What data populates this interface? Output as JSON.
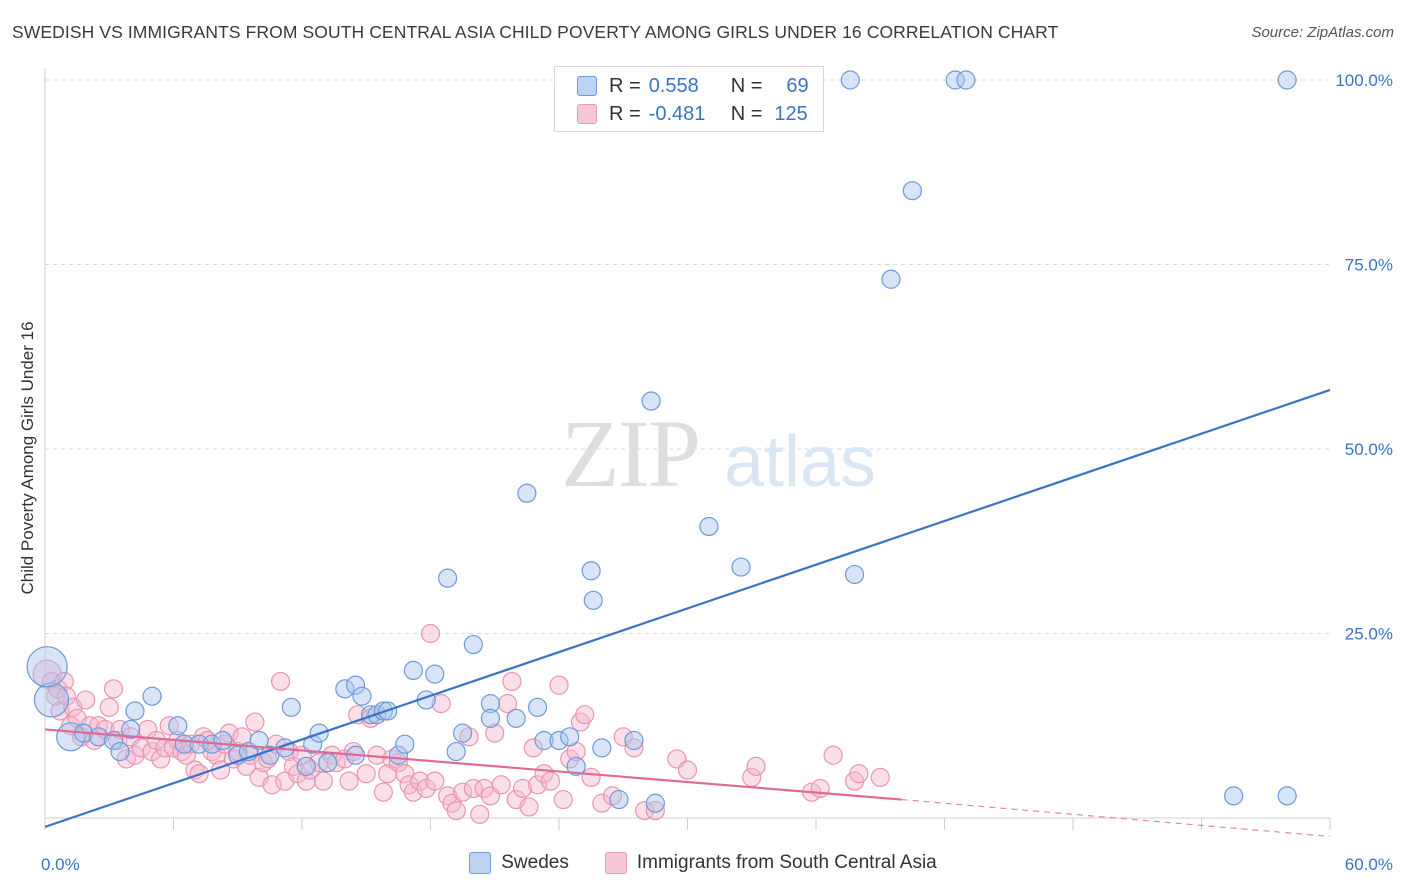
{
  "title": "SWEDISH VS IMMIGRANTS FROM SOUTH CENTRAL ASIA CHILD POVERTY AMONG GIRLS UNDER 16 CORRELATION CHART",
  "source": "Source: ZipAtlas.com",
  "watermark": {
    "zip": "ZIP",
    "atlas": "atlas"
  },
  "colors": {
    "blue": "#3a73c6",
    "blue_fill": "#a9c6ef",
    "blue_stroke": "#6e9ad8",
    "pink": "#e06a96",
    "pink_fill": "#f5b8cc",
    "pink_stroke": "#e996b3",
    "axis_label": "#3a73c6",
    "grid": "#d9d9d9"
  },
  "legend": {
    "rows": [
      {
        "r_label": "R =",
        "r_value": "0.558",
        "n_label": "N =",
        "n_value": "69"
      },
      {
        "r_label": "R =",
        "r_value": "-0.481",
        "n_label": "N =",
        "n_value": "125"
      }
    ]
  },
  "bottom_legend": [
    "Swedes",
    "Immigrants from South Central Asia"
  ],
  "chart_data": {
    "type": "scatter",
    "title": "SWEDISH VS IMMIGRANTS FROM SOUTH CENTRAL ASIA CHILD POVERTY AMONG GIRLS UNDER 16 CORRELATION CHART",
    "xlabel": "",
    "ylabel": "Child Poverty Among Girls Under 16",
    "xlim": [
      0,
      60
    ],
    "ylim": [
      0,
      100
    ],
    "x_tick_labels": [
      "0.0%",
      "60.0%"
    ],
    "y_tick_values": [
      25,
      50,
      75,
      100
    ],
    "y_tick_labels": [
      "25.0%",
      "50.0%",
      "75.0%",
      "100.0%"
    ],
    "grid": true,
    "legend_position": "top-center",
    "series": [
      {
        "name": "Swedes",
        "r": 0.558,
        "n": 69,
        "trend": [
          [
            0,
            -1.2
          ],
          [
            60,
            58.0
          ]
        ],
        "points": [
          [
            0.3,
            16.0,
            4
          ],
          [
            0.1,
            20.5,
            5
          ],
          [
            1.2,
            11.0,
            3
          ],
          [
            1.8,
            11.5,
            2
          ],
          [
            2.5,
            11.0,
            2
          ],
          [
            3.2,
            10.5,
            2
          ],
          [
            3.5,
            9.0,
            2
          ],
          [
            4.0,
            12.0,
            2
          ],
          [
            4.2,
            14.5,
            2
          ],
          [
            5.0,
            16.5,
            2
          ],
          [
            6.2,
            12.5,
            2
          ],
          [
            6.5,
            10.0,
            2
          ],
          [
            7.2,
            10.0,
            2
          ],
          [
            7.8,
            10.0,
            2
          ],
          [
            8.3,
            10.5,
            2
          ],
          [
            9.0,
            8.5,
            2
          ],
          [
            9.5,
            9.0,
            2
          ],
          [
            10.0,
            10.5,
            2
          ],
          [
            10.5,
            8.5,
            2
          ],
          [
            11.2,
            9.5,
            2
          ],
          [
            11.5,
            15.0,
            2
          ],
          [
            12.2,
            7.0,
            2
          ],
          [
            12.5,
            10.0,
            2
          ],
          [
            12.8,
            11.5,
            2
          ],
          [
            13.2,
            7.5,
            2
          ],
          [
            14.0,
            17.5,
            2
          ],
          [
            14.5,
            8.5,
            2
          ],
          [
            14.5,
            18.0,
            2
          ],
          [
            14.8,
            16.5,
            2
          ],
          [
            15.2,
            14.0,
            2
          ],
          [
            15.5,
            14.0,
            2
          ],
          [
            15.8,
            14.5,
            2
          ],
          [
            16.0,
            14.5,
            2
          ],
          [
            16.5,
            8.5,
            2
          ],
          [
            16.8,
            10.0,
            2
          ],
          [
            17.2,
            20.0,
            2
          ],
          [
            17.8,
            16.0,
            2
          ],
          [
            18.2,
            19.5,
            2
          ],
          [
            18.8,
            32.5,
            2
          ],
          [
            19.2,
            9.0,
            2
          ],
          [
            19.5,
            11.5,
            2
          ],
          [
            20.0,
            23.5,
            2
          ],
          [
            20.8,
            15.5,
            2
          ],
          [
            20.8,
            13.5,
            2
          ],
          [
            22.0,
            13.5,
            2
          ],
          [
            22.5,
            44.0,
            2
          ],
          [
            23.0,
            15.0,
            2
          ],
          [
            23.3,
            10.5,
            2
          ],
          [
            24.0,
            10.5,
            2
          ],
          [
            24.5,
            11.0,
            2
          ],
          [
            24.8,
            7.0,
            2
          ],
          [
            25.5,
            33.5,
            2
          ],
          [
            25.6,
            29.5,
            2
          ],
          [
            26.0,
            9.5,
            2
          ],
          [
            26.8,
            2.5,
            2
          ],
          [
            27.5,
            10.5,
            2
          ],
          [
            28.3,
            56.5,
            2
          ],
          [
            28.5,
            2.0,
            2
          ],
          [
            31.0,
            39.5,
            2
          ],
          [
            32.5,
            34.0,
            2
          ],
          [
            37.6,
            100.0,
            2
          ],
          [
            37.8,
            33.0,
            2
          ],
          [
            39.5,
            73.0,
            2
          ],
          [
            40.5,
            85.0,
            2
          ],
          [
            42.5,
            100.0,
            2
          ],
          [
            43.0,
            100.0,
            2
          ],
          [
            55.5,
            3.0,
            2
          ],
          [
            58.0,
            3.0,
            2
          ],
          [
            58.0,
            100.0,
            2
          ]
        ]
      },
      {
        "name": "Immigrants from South Central Asia",
        "r": -0.481,
        "n": 125,
        "trend": [
          [
            0,
            12.0
          ],
          [
            40,
            2.5
          ]
        ],
        "trend_dashed": [
          [
            40,
            2.5
          ],
          [
            60,
            -2.5
          ]
        ],
        "points": [
          [
            0.1,
            19.5,
            3
          ],
          [
            0.3,
            18.5,
            2
          ],
          [
            0.5,
            16.5,
            2
          ],
          [
            0.6,
            17.5,
            2
          ],
          [
            0.7,
            14.5,
            2
          ],
          [
            0.9,
            18.5,
            2
          ],
          [
            1.0,
            16.5,
            2
          ],
          [
            1.2,
            12.5,
            2
          ],
          [
            1.3,
            15.0,
            2
          ],
          [
            1.5,
            13.5,
            2
          ],
          [
            1.7,
            11.0,
            2
          ],
          [
            1.9,
            16.0,
            2
          ],
          [
            2.1,
            12.5,
            2
          ],
          [
            2.3,
            10.5,
            2
          ],
          [
            2.5,
            12.5,
            2
          ],
          [
            2.8,
            12.0,
            2
          ],
          [
            3.0,
            15.0,
            2
          ],
          [
            3.2,
            17.5,
            2
          ],
          [
            3.4,
            10.5,
            2
          ],
          [
            3.5,
            12.0,
            2
          ],
          [
            3.8,
            8.0,
            2
          ],
          [
            4.0,
            11.0,
            2
          ],
          [
            4.2,
            8.5,
            2
          ],
          [
            4.5,
            9.5,
            2
          ],
          [
            4.8,
            12.0,
            2
          ],
          [
            5.0,
            9.0,
            2
          ],
          [
            5.2,
            10.5,
            2
          ],
          [
            5.4,
            8.0,
            2
          ],
          [
            5.6,
            9.5,
            2
          ],
          [
            5.8,
            12.5,
            2
          ],
          [
            6.0,
            9.5,
            2
          ],
          [
            6.2,
            10.5,
            2
          ],
          [
            6.4,
            9.0,
            2
          ],
          [
            6.6,
            8.5,
            2
          ],
          [
            6.8,
            10.0,
            2
          ],
          [
            7.0,
            6.5,
            2
          ],
          [
            7.2,
            6.0,
            2
          ],
          [
            7.4,
            11.0,
            2
          ],
          [
            7.6,
            10.5,
            2
          ],
          [
            7.8,
            9.0,
            2
          ],
          [
            8.0,
            8.5,
            2
          ],
          [
            8.2,
            6.5,
            2
          ],
          [
            8.4,
            10.0,
            2
          ],
          [
            8.6,
            11.5,
            2
          ],
          [
            8.8,
            8.0,
            2
          ],
          [
            9.0,
            9.0,
            2
          ],
          [
            9.2,
            11.0,
            2
          ],
          [
            9.4,
            7.0,
            2
          ],
          [
            9.6,
            8.5,
            2
          ],
          [
            9.8,
            13.0,
            2
          ],
          [
            10.0,
            5.5,
            2
          ],
          [
            10.2,
            7.5,
            2
          ],
          [
            10.4,
            8.0,
            2
          ],
          [
            10.6,
            4.5,
            2
          ],
          [
            10.8,
            10.0,
            2
          ],
          [
            11.0,
            18.5,
            2
          ],
          [
            11.2,
            5.0,
            2
          ],
          [
            11.4,
            9.0,
            2
          ],
          [
            11.6,
            7.0,
            2
          ],
          [
            11.8,
            6.0,
            2
          ],
          [
            12.0,
            8.5,
            2
          ],
          [
            12.2,
            5.0,
            2
          ],
          [
            12.4,
            6.5,
            2
          ],
          [
            12.8,
            7.5,
            2
          ],
          [
            13.0,
            5.0,
            2
          ],
          [
            13.4,
            8.5,
            2
          ],
          [
            13.6,
            7.5,
            2
          ],
          [
            14.0,
            8.0,
            2
          ],
          [
            14.2,
            5.0,
            2
          ],
          [
            14.4,
            9.0,
            2
          ],
          [
            14.6,
            14.0,
            2
          ],
          [
            15.0,
            6.0,
            2
          ],
          [
            15.2,
            13.5,
            2
          ],
          [
            15.5,
            8.5,
            2
          ],
          [
            15.8,
            3.5,
            2
          ],
          [
            16.0,
            6.0,
            2
          ],
          [
            16.2,
            8.0,
            2
          ],
          [
            16.5,
            7.5,
            2
          ],
          [
            16.8,
            6.0,
            2
          ],
          [
            17.0,
            4.5,
            2
          ],
          [
            17.2,
            3.5,
            2
          ],
          [
            17.5,
            5.0,
            2
          ],
          [
            17.8,
            4.0,
            2
          ],
          [
            18.0,
            25.0,
            2
          ],
          [
            18.2,
            5.0,
            2
          ],
          [
            18.5,
            15.5,
            2
          ],
          [
            18.8,
            3.0,
            2
          ],
          [
            19.0,
            2.0,
            2
          ],
          [
            19.2,
            1.0,
            2
          ],
          [
            19.5,
            3.5,
            2
          ],
          [
            19.8,
            11.0,
            2
          ],
          [
            20.0,
            4.0,
            2
          ],
          [
            20.3,
            0.5,
            2
          ],
          [
            20.5,
            4.0,
            2
          ],
          [
            20.8,
            3.0,
            2
          ],
          [
            21.0,
            11.5,
            2
          ],
          [
            21.3,
            4.5,
            2
          ],
          [
            21.6,
            15.5,
            2
          ],
          [
            21.8,
            18.5,
            2
          ],
          [
            22.0,
            2.5,
            2
          ],
          [
            22.3,
            4.0,
            2
          ],
          [
            22.6,
            1.5,
            2
          ],
          [
            22.8,
            9.5,
            2
          ],
          [
            23.0,
            4.5,
            2
          ],
          [
            23.3,
            6.0,
            2
          ],
          [
            23.6,
            5.0,
            2
          ],
          [
            24.0,
            18.0,
            2
          ],
          [
            24.2,
            2.5,
            2
          ],
          [
            24.5,
            8.0,
            2
          ],
          [
            24.8,
            9.0,
            2
          ],
          [
            25.0,
            13.0,
            2
          ],
          [
            25.2,
            14.0,
            2
          ],
          [
            25.5,
            5.5,
            2
          ],
          [
            26.0,
            2.0,
            2
          ],
          [
            26.5,
            3.0,
            2
          ],
          [
            27.0,
            11.0,
            2
          ],
          [
            27.5,
            9.5,
            2
          ],
          [
            28.0,
            1.0,
            2
          ],
          [
            28.5,
            1.0,
            2
          ],
          [
            29.5,
            8.0,
            2
          ],
          [
            30.0,
            6.5,
            2
          ],
          [
            33.0,
            5.5,
            2
          ],
          [
            33.2,
            7.0,
            2
          ],
          [
            35.8,
            3.5,
            2
          ],
          [
            36.2,
            4.0,
            2
          ],
          [
            36.8,
            8.5,
            2
          ],
          [
            37.8,
            5.0,
            2
          ],
          [
            38.0,
            6.0,
            2
          ],
          [
            39.0,
            5.5,
            2
          ]
        ]
      }
    ]
  }
}
